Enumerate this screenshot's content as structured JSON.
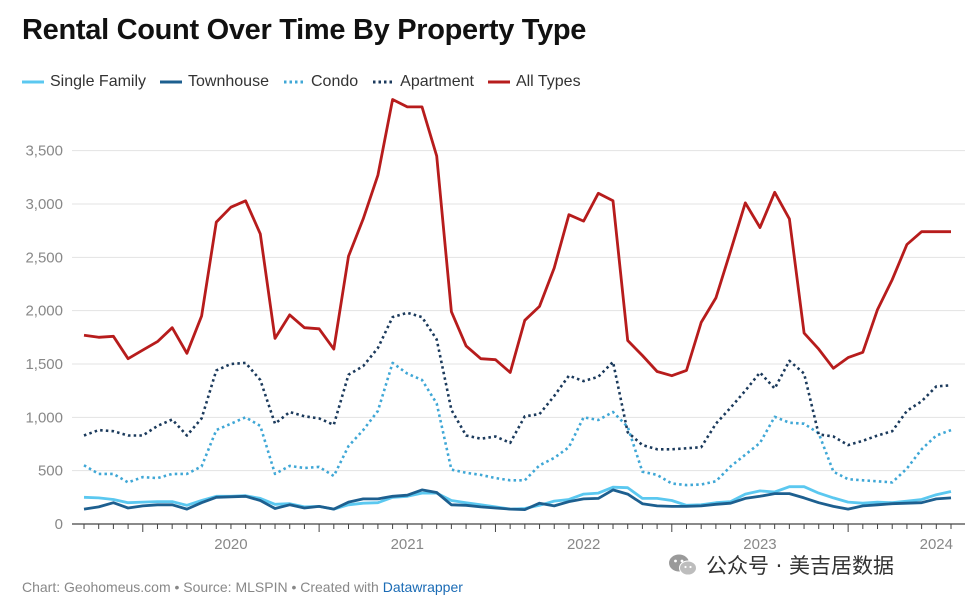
{
  "title": "Rental Count Over Time By Property Type",
  "footer": {
    "prefix": "Chart: Geohomeus.com • Source: MLSPIN • Created with ",
    "link": "Datawrapper"
  },
  "watermark": "公众号 · 美吉居数据",
  "colors": {
    "single_family": "#5bc8f0",
    "townhouse": "#1d5f8f",
    "condo": "#3fa7d6",
    "apartment": "#1b3a5c",
    "all_types": "#b71c1c"
  },
  "chart_data": {
    "type": "line",
    "title": "Rental Count Over Time By Property Type",
    "xlabel": "",
    "ylabel": "",
    "ylim": [
      0,
      3900
    ],
    "yticks": [
      0,
      500,
      1000,
      1500,
      2000,
      2500,
      3000,
      3500
    ],
    "ytick_labels": [
      "0",
      "500",
      "1,000",
      "1,500",
      "2,000",
      "2,500",
      "3,000",
      "3,500"
    ],
    "xlim": [
      "2019-09",
      "2024-08"
    ],
    "xtick_labels": [
      "2020",
      "2021",
      "2022",
      "2023",
      "2024"
    ],
    "grid": true,
    "legend_position": "top-left",
    "x": [
      "2019-09",
      "2019-10",
      "2019-11",
      "2019-12",
      "2020-01",
      "2020-02",
      "2020-03",
      "2020-04",
      "2020-05",
      "2020-06",
      "2020-07",
      "2020-08",
      "2020-09",
      "2020-10",
      "2020-11",
      "2020-12",
      "2021-01",
      "2021-02",
      "2021-03",
      "2021-04",
      "2021-05",
      "2021-06",
      "2021-07",
      "2021-08",
      "2021-09",
      "2021-10",
      "2021-11",
      "2021-12",
      "2022-01",
      "2022-02",
      "2022-03",
      "2022-04",
      "2022-05",
      "2022-06",
      "2022-07",
      "2022-08",
      "2022-09",
      "2022-10",
      "2022-11",
      "2022-12",
      "2023-01",
      "2023-02",
      "2023-03",
      "2023-04",
      "2023-05",
      "2023-06",
      "2023-07",
      "2023-08",
      "2023-09",
      "2023-10",
      "2023-11",
      "2023-12",
      "2024-01",
      "2024-02",
      "2024-03",
      "2024-04",
      "2024-05",
      "2024-06",
      "2024-07",
      "2024-08"
    ],
    "series": [
      {
        "name": "Single Family",
        "style": "solid",
        "values": [
          250,
          245,
          230,
          200,
          205,
          210,
          210,
          175,
          220,
          260,
          260,
          265,
          240,
          185,
          190,
          160,
          165,
          140,
          180,
          195,
          200,
          250,
          260,
          290,
          290,
          220,
          200,
          180,
          160,
          140,
          145,
          175,
          215,
          230,
          280,
          290,
          345,
          340,
          240,
          240,
          220,
          175,
          180,
          200,
          210,
          280,
          310,
          300,
          350,
          350,
          290,
          245,
          205,
          195,
          205,
          200,
          215,
          230,
          275,
          305
        ]
      },
      {
        "name": "Townhouse",
        "style": "solid",
        "values": [
          140,
          160,
          200,
          150,
          170,
          180,
          180,
          140,
          200,
          250,
          255,
          260,
          220,
          145,
          180,
          150,
          165,
          140,
          205,
          235,
          235,
          260,
          270,
          320,
          295,
          180,
          175,
          160,
          150,
          140,
          135,
          195,
          170,
          210,
          235,
          240,
          320,
          280,
          190,
          170,
          165,
          165,
          170,
          185,
          195,
          240,
          260,
          285,
          285,
          245,
          200,
          165,
          140,
          170,
          180,
          190,
          195,
          200,
          235,
          245
        ]
      },
      {
        "name": "Condo",
        "style": "dotted",
        "values": [
          550,
          470,
          470,
          390,
          440,
          430,
          470,
          470,
          540,
          880,
          940,
          1000,
          920,
          470,
          545,
          525,
          535,
          450,
          730,
          880,
          1060,
          1510,
          1410,
          1350,
          1130,
          510,
          480,
          460,
          430,
          410,
          410,
          550,
          620,
          720,
          1000,
          975,
          1050,
          910,
          490,
          460,
          380,
          365,
          370,
          400,
          540,
          650,
          760,
          1005,
          950,
          940,
          850,
          490,
          420,
          410,
          400,
          390,
          520,
          700,
          830,
          880
        ]
      },
      {
        "name": "Apartment",
        "style": "dotted",
        "values": [
          830,
          880,
          870,
          830,
          830,
          920,
          980,
          830,
          990,
          1440,
          1500,
          1510,
          1350,
          940,
          1050,
          1010,
          990,
          930,
          1400,
          1480,
          1650,
          1940,
          1980,
          1940,
          1730,
          1070,
          830,
          800,
          820,
          760,
          1010,
          1030,
          1200,
          1390,
          1340,
          1380,
          1520,
          860,
          740,
          700,
          700,
          710,
          720,
          940,
          1090,
          1250,
          1420,
          1270,
          1530,
          1410,
          840,
          820,
          740,
          780,
          830,
          870,
          1060,
          1150,
          1290,
          1300
        ]
      },
      {
        "name": "All Types",
        "style": "solid",
        "values": [
          1770,
          1750,
          1760,
          1550,
          1630,
          1710,
          1840,
          1600,
          1950,
          2830,
          2970,
          3030,
          2720,
          1740,
          1960,
          1840,
          1830,
          1640,
          2510,
          2860,
          3270,
          3980,
          3910,
          3910,
          3450,
          1990,
          1670,
          1550,
          1540,
          1420,
          1910,
          2040,
          2400,
          2900,
          2840,
          3100,
          3030,
          1720,
          1580,
          1430,
          1390,
          1440,
          1890,
          2120,
          2560,
          3010,
          2780,
          3110,
          2860,
          1790,
          1640,
          1460,
          1560,
          1610,
          2010,
          2290,
          2620,
          2740,
          2740,
          2740
        ]
      }
    ]
  }
}
